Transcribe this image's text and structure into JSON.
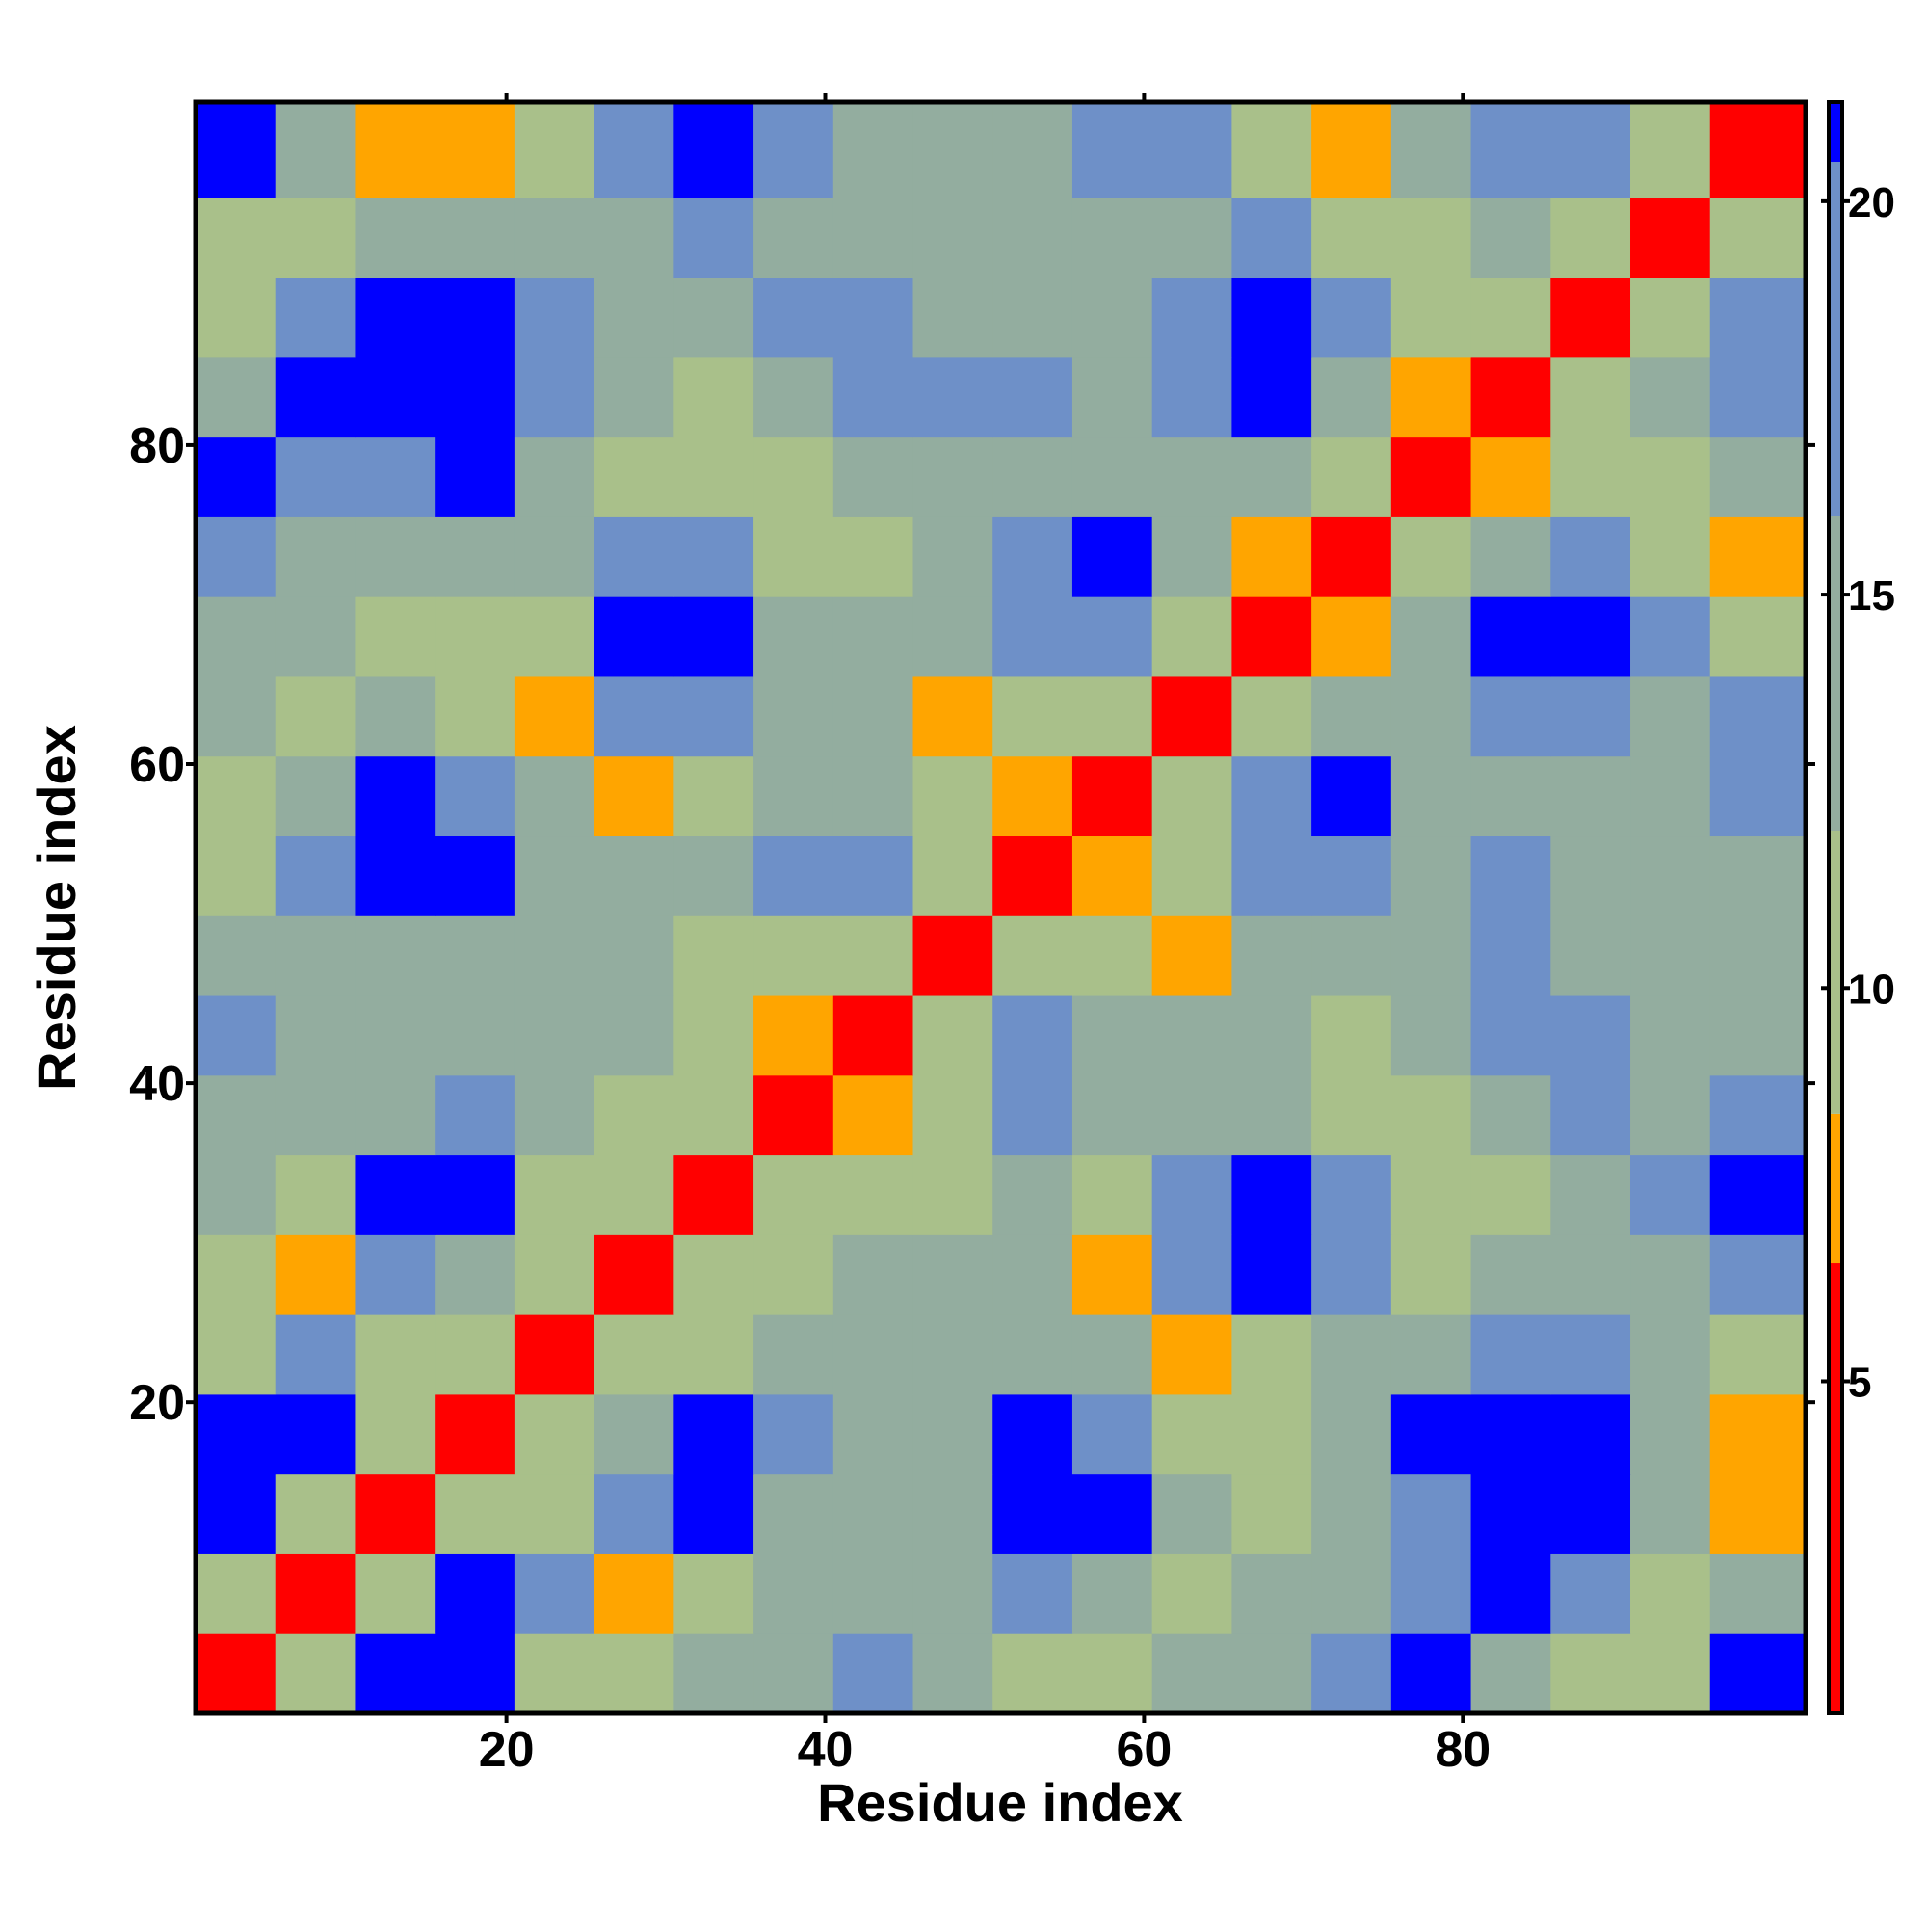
{
  "chart_data": {
    "type": "heatmap",
    "xlabel": "Residue index",
    "ylabel": "Residue index",
    "xlim": [
      0.5,
      101.5
    ],
    "ylim": [
      0.5,
      101.5
    ],
    "xticks": [
      20,
      40,
      60,
      80
    ],
    "yticks": [
      20,
      40,
      60,
      80
    ],
    "x_bins": [
      0.5,
      5.5,
      10.5,
      15.5,
      20.5,
      25.5,
      30.5,
      35.5,
      40.5,
      45.5,
      50.5,
      55.5,
      60.5,
      65.5,
      70.5,
      75.5,
      80.5,
      85.5,
      90.5,
      95.5,
      101.5
    ],
    "y_bins": [
      0.5,
      5.5,
      10.5,
      15.5,
      20.5,
      25.5,
      30.5,
      35.5,
      40.5,
      45.5,
      50.5,
      55.5,
      60.5,
      65.5,
      70.5,
      75.5,
      80.5,
      85.5,
      90.5,
      95.5,
      101.5
    ],
    "z": [
      [
        3,
        10,
        21,
        21,
        12,
        9,
        14,
        13,
        18,
        13,
        12,
        11,
        13,
        16,
        20,
        21,
        15,
        9,
        9,
        21
      ],
      [
        10,
        3,
        11,
        21,
        17,
        8,
        12,
        13,
        16,
        13,
        17,
        16,
        12,
        13,
        15,
        20,
        21,
        17,
        11,
        16
      ],
      [
        21,
        11,
        3,
        10,
        12,
        20,
        21,
        16,
        15,
        14,
        21,
        21,
        13,
        12,
        13,
        20,
        21,
        21,
        14,
        8
      ],
      [
        21,
        21,
        10,
        3,
        9,
        14,
        21,
        18,
        14,
        15,
        21,
        20,
        12,
        10,
        14,
        21,
        21,
        21,
        14,
        8
      ],
      [
        12,
        17,
        12,
        9,
        3,
        9,
        12,
        16,
        14,
        13,
        16,
        13,
        8,
        12,
        13,
        15,
        20,
        19,
        14,
        12
      ],
      [
        9,
        8,
        20,
        14,
        9,
        3,
        9,
        12,
        15,
        14,
        13,
        8,
        18,
        21,
        20,
        11,
        14,
        14,
        15,
        19
      ],
      [
        14,
        12,
        21,
        21,
        12,
        9,
        3,
        9,
        12,
        10,
        15,
        9,
        18,
        21,
        19,
        9,
        12,
        14,
        17,
        21
      ],
      [
        13,
        13,
        16,
        18,
        16,
        12,
        9,
        3,
        7.5,
        9,
        19,
        14,
        13,
        14,
        10,
        9,
        15,
        17,
        15,
        19
      ],
      [
        18,
        16,
        15,
        14,
        14,
        15,
        12,
        7.5,
        3,
        9,
        20,
        15,
        14,
        13,
        12,
        15,
        19,
        18,
        15,
        16
      ],
      [
        13,
        13,
        14,
        15,
        13,
        14,
        10,
        9,
        9,
        3,
        9,
        9,
        8,
        14,
        15,
        14,
        20,
        16,
        14,
        15
      ],
      [
        12,
        17,
        21,
        21,
        16,
        13,
        15,
        19,
        20,
        9,
        3,
        7.5,
        12,
        20,
        20,
        14,
        17,
        14,
        13,
        14
      ],
      [
        11,
        16,
        21,
        20,
        13,
        8,
        9,
        14,
        15,
        9,
        7.5,
        3,
        9,
        20,
        21,
        15,
        13,
        13,
        14,
        17
      ],
      [
        13,
        12,
        13,
        12,
        8,
        18,
        18,
        13,
        14,
        8,
        12,
        9,
        3,
        9,
        13,
        14,
        17,
        18,
        14,
        20
      ],
      [
        16,
        13,
        12,
        10,
        12,
        21,
        21,
        14,
        13,
        14,
        20,
        20,
        9,
        3,
        8,
        14,
        21,
        21,
        17,
        10
      ],
      [
        20,
        15,
        13,
        14,
        13,
        20,
        19,
        10,
        12,
        15,
        20,
        21,
        13,
        8,
        3,
        9,
        15,
        20,
        12,
        8
      ],
      [
        21,
        20,
        20,
        21,
        15,
        11,
        9,
        9,
        15,
        14,
        14,
        15,
        14,
        14,
        9,
        3,
        7.5,
        9,
        10,
        16
      ],
      [
        15,
        21,
        21,
        21,
        20,
        14,
        12,
        15,
        19,
        20,
        17,
        13,
        17,
        21,
        15,
        7.5,
        3,
        9,
        14,
        20
      ],
      [
        9,
        17,
        21,
        21,
        19,
        14,
        14,
        17,
        18,
        16,
        14,
        13,
        18,
        21,
        20,
        9,
        9,
        3,
        9,
        17
      ],
      [
        9,
        11,
        14,
        14,
        14,
        15,
        17,
        15,
        15,
        14,
        13,
        14,
        14,
        17,
        12,
        10,
        14,
        9,
        3,
        9
      ],
      [
        21,
        16,
        8,
        8,
        12,
        19,
        21,
        19,
        16,
        15,
        14,
        17,
        20,
        10,
        8,
        16,
        20,
        17,
        9,
        3
      ]
    ],
    "colorbar": {
      "lim": [
        0.78,
        21.26
      ],
      "ticks": [
        5,
        10,
        15,
        20
      ],
      "levels": [
        0.78,
        6.5,
        8.4,
        12,
        16,
        20.5,
        21.26
      ],
      "colors": [
        "#ff0000",
        "#ffa500",
        "#a9c08a",
        "#93ad9f",
        "#6e90c8",
        "#0000ff"
      ]
    }
  }
}
